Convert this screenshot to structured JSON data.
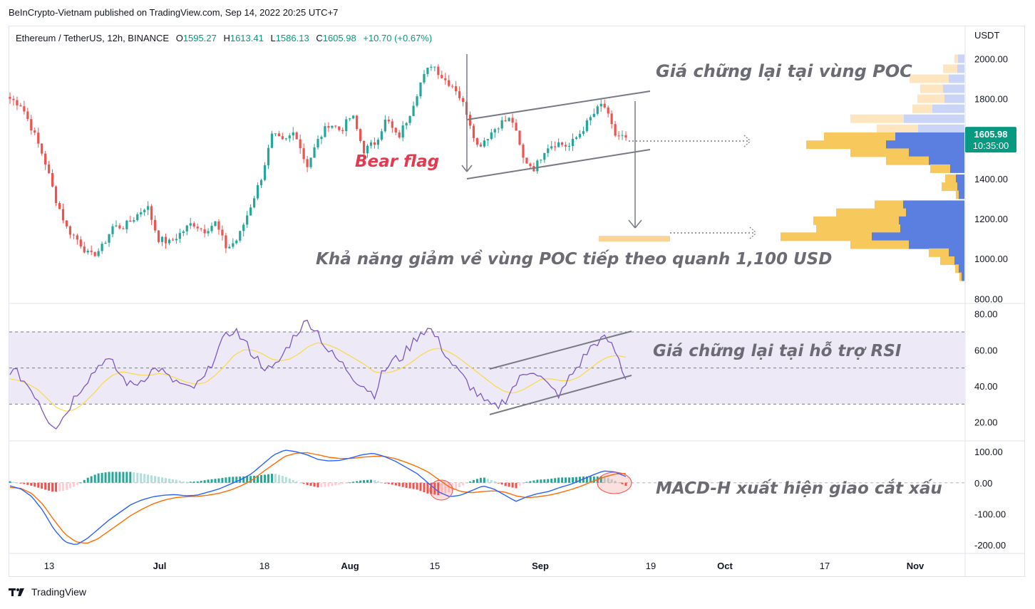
{
  "publisher_line": "BeInCrypto-Vietnam published on TradingView.com, Sep 14, 2022 20:25 UTC+7",
  "symbol": {
    "name": "Ethereum / TetherUS, 12h, BINANCE",
    "o_label": "O",
    "o": "1595.27",
    "h_label": "H",
    "h": "1613.41",
    "l_label": "L",
    "l": "1586.13",
    "c_label": "C",
    "c": "1605.98",
    "change": "+10.70 (+0.67%)"
  },
  "footer_brand": "TradingView",
  "colors": {
    "up": "#26a69a",
    "down": "#ef5350",
    "rsi": "#7e57c2",
    "rsi_ma": "#f9d94a",
    "macd": "#2962ff",
    "signal": "#ff6d00",
    "vp_up": "#f7c95c",
    "vp_down": "#5b7fe0",
    "price_tag": "#089981",
    "annotation": "#6b6b73",
    "bear_flag": "#e53950",
    "band": "#ede9f7"
  },
  "chart_data": [
    {
      "type": "candlestick",
      "title": "Ethereum / TetherUS, 12h, BINANCE",
      "ylabel": "USDT",
      "ylim": [
        780,
        2080
      ],
      "y_ticks": [
        "2000.00",
        "1800.00",
        "1600.00",
        "1400.00",
        "1200.00",
        "1000.00",
        "800.00"
      ],
      "x_ticks": [
        "13",
        "Jul",
        "18",
        "Aug",
        "15",
        "Sep",
        "19",
        "Oct",
        "17",
        "Nov"
      ],
      "current_price": "1605.98",
      "countdown": "10:35:00",
      "close_path": [
        1800,
        1770,
        1640,
        1500,
        1300,
        1150,
        1090,
        1010,
        1050,
        1160,
        1160,
        1210,
        1270,
        1100,
        1080,
        1130,
        1180,
        1140,
        1180,
        1050,
        1100,
        1250,
        1400,
        1620,
        1580,
        1640,
        1460,
        1590,
        1680,
        1640,
        1720,
        1540,
        1580,
        1700,
        1600,
        1720,
        1880,
        1980,
        1900,
        1860,
        1740,
        1560,
        1620,
        1680,
        1700,
        1500,
        1450,
        1560,
        1580,
        1560,
        1630,
        1710,
        1780,
        1620,
        1605.98
      ],
      "volume_profile": [
        {
          "price": 2000,
          "up": 5,
          "down": 9
        },
        {
          "price": 1950,
          "up": 20,
          "down": 10
        },
        {
          "price": 1900,
          "up": 55,
          "down": 22
        },
        {
          "price": 1850,
          "up": 32,
          "down": 30
        },
        {
          "price": 1800,
          "up": 38,
          "down": 28
        },
        {
          "price": 1750,
          "up": 28,
          "down": 45
        },
        {
          "price": 1700,
          "up": 75,
          "down": 85
        },
        {
          "price": 1650,
          "up": 58,
          "down": 65
        },
        {
          "price": 1610,
          "up": 100,
          "down": 97
        },
        {
          "price": 1570,
          "up": 112,
          "down": 110
        },
        {
          "price": 1530,
          "up": 82,
          "down": 78
        },
        {
          "price": 1490,
          "up": 60,
          "down": 50
        },
        {
          "price": 1450,
          "up": 28,
          "down": 20
        },
        {
          "price": 1400,
          "up": 15,
          "down": 12
        },
        {
          "price": 1360,
          "up": 22,
          "down": 10
        },
        {
          "price": 1320,
          "up": 4,
          "down": 8
        },
        {
          "price": 1270,
          "up": 40,
          "down": 86
        },
        {
          "price": 1230,
          "up": 98,
          "down": 82
        },
        {
          "price": 1190,
          "up": 120,
          "down": 92
        },
        {
          "price": 1150,
          "up": 118,
          "down": 90
        },
        {
          "price": 1110,
          "up": 128,
          "down": 130
        },
        {
          "price": 1070,
          "up": 82,
          "down": 78
        },
        {
          "price": 1030,
          "up": 28,
          "down": 22
        },
        {
          "price": 990,
          "up": 20,
          "down": 14
        },
        {
          "price": 950,
          "up": 5,
          "down": 8
        },
        {
          "price": 910,
          "up": 3,
          "down": 4
        }
      ]
    },
    {
      "type": "line",
      "name": "RSI",
      "ylim": [
        10,
        85
      ],
      "y_ticks": [
        "80.00",
        "60.00",
        "40.00",
        "20.00"
      ],
      "levels": [
        70,
        50,
        30
      ],
      "rsi_path": [
        49,
        46,
        40,
        33,
        22,
        18,
        25,
        35,
        42,
        48,
        55,
        52,
        45,
        40,
        43,
        48,
        50,
        44,
        42,
        38,
        40,
        45,
        58,
        66,
        72,
        65,
        58,
        52,
        48,
        55,
        64,
        72,
        76,
        70,
        60,
        55,
        50,
        44,
        40,
        35,
        48,
        54,
        56,
        63,
        70,
        72,
        64,
        55,
        48,
        42,
        36,
        30,
        28,
        32,
        40,
        46,
        50,
        44,
        38,
        35,
        45,
        52,
        60,
        65,
        66,
        58,
        44
      ],
      "rsi_ma_path": [
        44,
        43,
        41,
        38,
        33,
        28,
        26,
        27,
        31,
        36,
        42,
        46,
        48,
        47,
        46,
        46,
        47,
        46,
        44,
        42,
        41,
        42,
        46,
        51,
        57,
        60,
        60,
        58,
        55,
        54,
        55,
        58,
        62,
        64,
        63,
        61,
        58,
        55,
        52,
        48,
        47,
        48,
        50,
        53,
        57,
        60,
        61,
        59,
        56,
        52,
        48,
        44,
        40,
        37,
        36,
        38,
        41,
        44,
        44,
        43,
        43,
        45,
        49,
        53,
        56,
        57,
        56
      ]
    },
    {
      "type": "line",
      "name": "MACD",
      "ylim": [
        -225,
        130
      ],
      "y_ticks": [
        "100.00",
        "0.00",
        "-100.00",
        "-200.00"
      ],
      "macd_path": [
        -10,
        -20,
        -45,
        -90,
        -150,
        -190,
        -200,
        -180,
        -150,
        -120,
        -95,
        -70,
        -55,
        -45,
        -40,
        -38,
        -42,
        -40,
        -30,
        -20,
        -5,
        10,
        30,
        60,
        90,
        105,
        100,
        90,
        75,
        70,
        72,
        80,
        90,
        95,
        85,
        70,
        50,
        30,
        0,
        -30,
        -45,
        -40,
        -25,
        -10,
        -20,
        -40,
        -60,
        -45,
        -35,
        -28,
        -15,
        -5,
        10,
        25,
        38,
        35,
        20
      ],
      "signal_path": [
        -15,
        -18,
        -35,
        -70,
        -120,
        -165,
        -190,
        -195,
        -180,
        -155,
        -130,
        -105,
        -85,
        -68,
        -56,
        -48,
        -45,
        -44,
        -40,
        -34,
        -24,
        -10,
        8,
        35,
        60,
        85,
        95,
        97,
        90,
        82,
        78,
        78,
        82,
        85,
        85,
        78,
        66,
        52,
        35,
        10,
        -15,
        -28,
        -32,
        -28,
        -26,
        -30,
        -42,
        -48,
        -45,
        -40,
        -32,
        -22,
        -10,
        5,
        18,
        28,
        30
      ],
      "hist_path": [
        5,
        -2,
        -10,
        -20,
        -30,
        -25,
        -10,
        15,
        30,
        35,
        35,
        35,
        30,
        23,
        16,
        10,
        3,
        4,
        10,
        14,
        19,
        20,
        22,
        25,
        30,
        20,
        5,
        -7,
        -15,
        -12,
        -6,
        2,
        8,
        10,
        0,
        -8,
        -16,
        -22,
        -35,
        -40,
        -30,
        -12,
        7,
        18,
        6,
        -10,
        -18,
        3,
        10,
        12,
        17,
        17,
        20,
        20,
        20,
        7,
        -10
      ]
    }
  ],
  "annotations": {
    "poc_hold": "Giá chững lại tại vùng POC",
    "bear_flag": "Bear flag",
    "next_poc": "Khả năng giảm về vùng POC tiếp theo quanh 1,100 USD",
    "rsi_support": "Giá chững lại tại hỗ trợ RSI",
    "macd_cross": "MACD-H xuất hiện giao cắt xấu"
  }
}
